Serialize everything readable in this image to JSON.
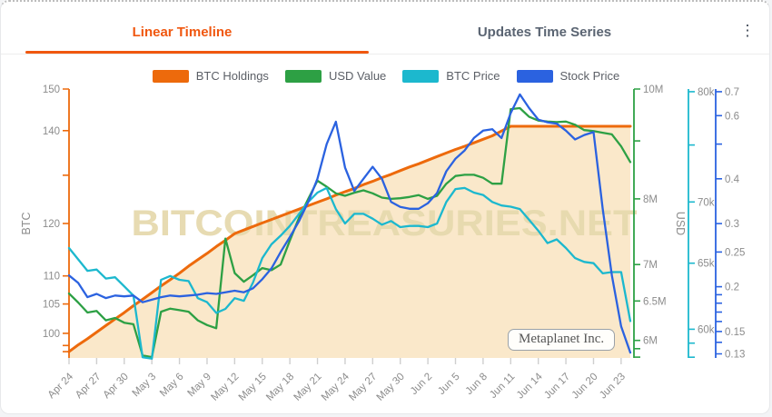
{
  "tabs": {
    "active": "Linear Timeline",
    "inactive": "Updates Time Series"
  },
  "menu_glyph": "⋮",
  "watermark": "BITCOINTREASURIES.NET",
  "annotation": "Metaplanet Inc.",
  "colors": {
    "accent": "#F0570F",
    "holdings": "#ED6A0C",
    "usd_value": "#2DA044",
    "btc_price": "#1CB8CE",
    "stock_price": "#2B62E0",
    "fill": "#FAE8CA",
    "watermark": "#E6DAAE"
  },
  "legend": [
    {
      "label": "BTC Holdings",
      "color": "#ED6A0C"
    },
    {
      "label": "USD Value",
      "color": "#2DA044"
    },
    {
      "label": "BTC Price",
      "color": "#1CB8CE"
    },
    {
      "label": "Stock Price",
      "color": "#2B62E0"
    }
  ],
  "chart_data": {
    "type": "line",
    "frequency": "daily",
    "start_date": "Apr 24",
    "end_date": "Jun 24",
    "x_axis": {
      "tick_labels": [
        "Apr 24",
        "Apr 27",
        "Apr 30",
        "May 3",
        "May 6",
        "May 9",
        "May 12",
        "May 15",
        "May 18",
        "May 21",
        "May 24",
        "May 27",
        "May 30",
        "Jun 2",
        "Jun 5",
        "Jun 8",
        "Jun 11",
        "Jun 14",
        "Jun 17",
        "Jun 20",
        "Jun 23"
      ],
      "label_every_n_days": 3
    },
    "axes": {
      "btc": {
        "label": "BTC",
        "unit": "BTC",
        "scale": "log",
        "range": [
          96,
          150
        ],
        "ticks": [
          [
            150,
            "150"
          ],
          [
            140,
            "140"
          ],
          [
            130,
            ""
          ],
          [
            120,
            "120"
          ],
          [
            110,
            "110"
          ],
          [
            105,
            "105"
          ],
          [
            100,
            "100"
          ],
          [
            98,
            ""
          ],
          [
            97,
            ""
          ]
        ]
      },
      "usd_value": {
        "label": "USD",
        "unit": "M USD",
        "scale": "log",
        "range": [
          5.79,
          10
        ],
        "ticks": [
          [
            10,
            "10M"
          ],
          [
            9,
            ""
          ],
          [
            8,
            "8M"
          ],
          [
            7,
            "7M"
          ],
          [
            6.5,
            "6.5M"
          ],
          [
            6,
            "6M"
          ],
          [
            5.9,
            ""
          ],
          [
            5.8,
            ""
          ]
        ]
      },
      "btc_price": {
        "label": "",
        "unit": "k USD",
        "scale": "log",
        "range": [
          57.95,
          80.26
        ],
        "ticks": [
          [
            80,
            "80k"
          ],
          [
            75,
            ""
          ],
          [
            70,
            "70k"
          ],
          [
            65,
            "65k"
          ],
          [
            60,
            "60k"
          ],
          [
            59,
            ""
          ],
          [
            58,
            ""
          ]
        ]
      },
      "stock_price": {
        "label": "",
        "unit": "USD",
        "scale": "log",
        "range": [
          0.1266,
          0.712
        ],
        "ticks": [
          [
            0.7,
            "0.7"
          ],
          [
            0.6,
            "0.6"
          ],
          [
            0.5,
            ""
          ],
          [
            0.4,
            "0.4"
          ],
          [
            0.3,
            "0.3"
          ],
          [
            0.25,
            "0.25"
          ],
          [
            0.2,
            "0.2"
          ],
          [
            0.19,
            ""
          ],
          [
            0.18,
            ""
          ],
          [
            0.17,
            ""
          ],
          [
            0.16,
            ""
          ],
          [
            0.15,
            "0.15"
          ],
          [
            0.14,
            ""
          ],
          [
            0.13,
            "0.13"
          ]
        ]
      }
    },
    "series": [
      {
        "name": "BTC Holdings",
        "axis": "btc",
        "color": "#ED6A0C",
        "area_fill": "#FAE8CA",
        "values": [
          97.0,
          98.1,
          99.1,
          100.2,
          101.3,
          102.4,
          103.5,
          104.7,
          105.8,
          107.0,
          108.2,
          109.3,
          110.5,
          111.8,
          113.0,
          114.2,
          115.5,
          116.7,
          118.0,
          118.7,
          119.4,
          120.1,
          120.8,
          121.5,
          122.2,
          122.9,
          123.6,
          124.3,
          125.0,
          125.8,
          126.5,
          127.2,
          128.0,
          128.7,
          129.5,
          130.2,
          131.0,
          131.8,
          132.5,
          133.3,
          134.1,
          134.9,
          135.7,
          136.4,
          137.2,
          138.0,
          138.8,
          139.9,
          141.0,
          141.0,
          141.0,
          141.0,
          141.0,
          141.0,
          141.0,
          141.0,
          141.0,
          141.0,
          141.0,
          141.0,
          141.0,
          141.0
        ]
      },
      {
        "name": "USD Value",
        "axis": "usd_value",
        "color": "#2DA044",
        "values": [
          6.6,
          6.48,
          6.35,
          6.37,
          6.25,
          6.28,
          6.22,
          6.2,
          5.82,
          5.8,
          6.36,
          6.4,
          6.38,
          6.36,
          6.25,
          6.19,
          6.15,
          7.38,
          6.88,
          6.76,
          6.85,
          6.95,
          6.92,
          7.0,
          7.35,
          7.7,
          8.0,
          8.3,
          8.2,
          8.09,
          8.05,
          8.1,
          8.14,
          8.09,
          8.02,
          8.0,
          8.01,
          8.03,
          8.06,
          8.0,
          8.05,
          8.25,
          8.38,
          8.4,
          8.4,
          8.35,
          8.25,
          8.25,
          9.6,
          9.62,
          9.45,
          9.38,
          9.36,
          9.35,
          9.36,
          9.3,
          9.2,
          9.18,
          9.15,
          9.12,
          8.9,
          8.62
        ]
      },
      {
        "name": "BTC Price",
        "axis": "btc_price",
        "color": "#1CB8CE",
        "values": [
          66.2,
          65.3,
          64.4,
          64.5,
          63.8,
          63.9,
          63.2,
          62.5,
          58.0,
          57.9,
          63.7,
          64.0,
          63.7,
          63.6,
          62.3,
          62.0,
          61.2,
          61.5,
          62.3,
          62.1,
          63.5,
          65.4,
          66.5,
          67.2,
          68.0,
          69.0,
          70.0,
          70.8,
          71.2,
          69.4,
          68.2,
          69.0,
          69.0,
          68.6,
          68.1,
          68.4,
          67.9,
          68.0,
          68.0,
          67.9,
          68.2,
          70.0,
          71.1,
          71.2,
          70.8,
          70.6,
          70.0,
          69.7,
          69.6,
          69.4,
          68.5,
          67.6,
          66.6,
          66.9,
          66.2,
          65.4,
          65.1,
          65.0,
          64.2,
          64.3,
          64.3,
          60.6
        ]
      },
      {
        "name": "Stock Price",
        "axis": "stock_price",
        "color": "#2B62E0",
        "values": [
          0.215,
          0.205,
          0.187,
          0.191,
          0.186,
          0.189,
          0.188,
          0.189,
          0.181,
          0.184,
          0.187,
          0.189,
          0.188,
          0.189,
          0.19,
          0.192,
          0.191,
          0.193,
          0.195,
          0.193,
          0.198,
          0.21,
          0.225,
          0.25,
          0.275,
          0.305,
          0.345,
          0.4,
          0.5,
          0.577,
          0.43,
          0.37,
          0.4,
          0.432,
          0.4,
          0.345,
          0.334,
          0.33,
          0.33,
          0.342,
          0.365,
          0.42,
          0.455,
          0.48,
          0.52,
          0.545,
          0.55,
          0.52,
          0.61,
          0.688,
          0.63,
          0.585,
          0.575,
          0.57,
          0.545,
          0.515,
          0.53,
          0.54,
          0.33,
          0.215,
          0.155,
          0.131
        ]
      }
    ]
  }
}
